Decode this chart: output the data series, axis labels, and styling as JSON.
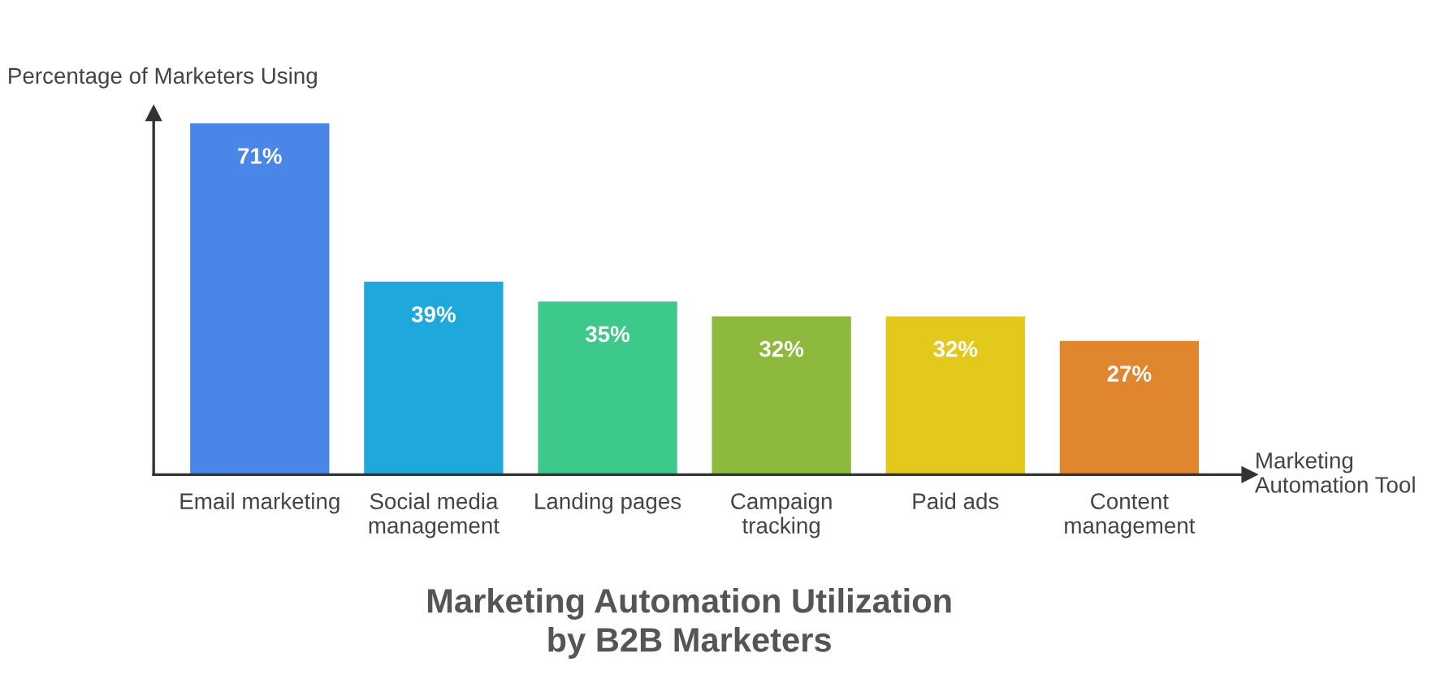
{
  "chart_data": {
    "type": "bar",
    "title": "Marketing Automation Utilization\nby B2B Marketers",
    "ylabel": "Percentage of Marketers Using",
    "xlabel": "Marketing\nAutomation Tool",
    "categories": [
      "Email marketing",
      "Social media\nmanagement",
      "Landing pages",
      "Campaign\ntracking",
      "Paid ads",
      "Content\nmanagement"
    ],
    "values": [
      71,
      39,
      35,
      32,
      32,
      27
    ],
    "value_labels": [
      "71%",
      "39%",
      "35%",
      "32%",
      "32%",
      "27%"
    ],
    "colors": [
      "#4a86e8",
      "#1fa8dc",
      "#3cc98a",
      "#8dba3c",
      "#e3c91c",
      "#e0862f"
    ],
    "ylim": [
      0,
      73
    ],
    "grid": false,
    "legend": false
  }
}
